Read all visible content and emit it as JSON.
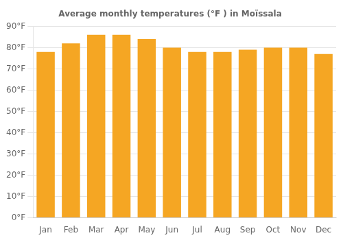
{
  "chart_data": {
    "type": "bar",
    "title": "Average monthly temperatures (°F ) in Moïssala",
    "categories": [
      "Jan",
      "Feb",
      "Mar",
      "Apr",
      "May",
      "Jun",
      "Jul",
      "Aug",
      "Sep",
      "Oct",
      "Nov",
      "Dec"
    ],
    "values": [
      78,
      82,
      86,
      86,
      84,
      80,
      78,
      78,
      79,
      80,
      80,
      77
    ],
    "color": "#F5A623",
    "ylim": [
      0,
      90
    ],
    "yticks": [
      {
        "value": 0,
        "label": "0°F"
      },
      {
        "value": 10,
        "label": "10°F"
      },
      {
        "value": 20,
        "label": "20°F"
      },
      {
        "value": 30,
        "label": "30°F"
      },
      {
        "value": 40,
        "label": "40°F"
      },
      {
        "value": 50,
        "label": "50°F"
      },
      {
        "value": 60,
        "label": "60°F"
      },
      {
        "value": 70,
        "label": "70°F"
      },
      {
        "value": 80,
        "label": "80°F"
      },
      {
        "value": 90,
        "label": "90°F"
      }
    ],
    "grid": true
  }
}
